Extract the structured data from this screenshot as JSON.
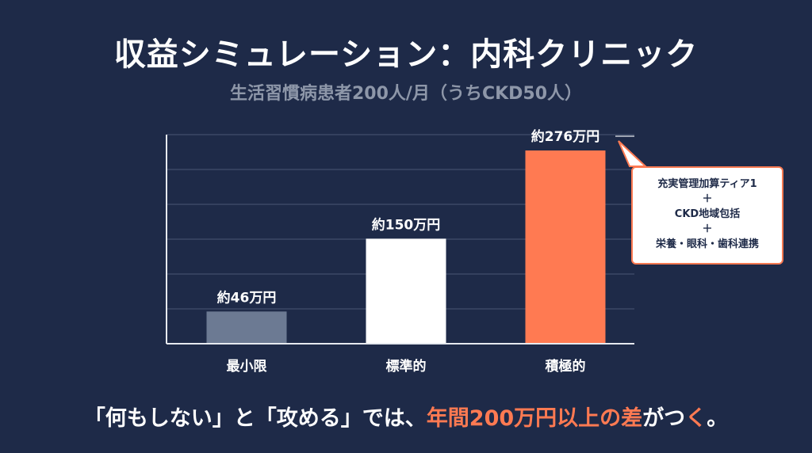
{
  "title": "収益シミュレーション：内科クリニック",
  "subtitle": "生活習慣病患者200人/月（うちCKD50人）",
  "colors": {
    "background": "#1e2a48",
    "minimal_bar": "#6c7a93",
    "standard_bar": "#ffffff",
    "aggressive_bar": "#ff7a52",
    "grid": "#4a5674",
    "accent": "#ff7a52"
  },
  "chart_data": {
    "type": "bar",
    "categories": [
      "最小限",
      "標準的",
      "積極的"
    ],
    "values": [
      46,
      150,
      276
    ],
    "data_labels": [
      "約46万円",
      "約150万円",
      "約276万円"
    ],
    "unit": "万円",
    "ylim": [
      0,
      276
    ],
    "grid": true,
    "legend": "none"
  },
  "callout": {
    "line1": "充実管理加算ティア1",
    "plus1": "＋",
    "line2": "CKD地域包括",
    "plus2": "＋",
    "line3": "栄養・眼科・歯科連携"
  },
  "footer": {
    "part1": "「何もしない」と「攻める」では、",
    "highlight1": "年間200万円以上の差",
    "part2": "がつ",
    "highlight2": "く",
    "part3": "。"
  }
}
